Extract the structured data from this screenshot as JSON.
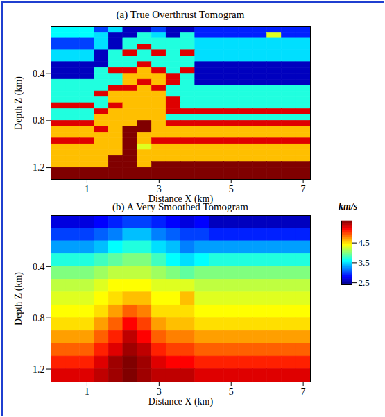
{
  "chart_data": [
    {
      "type": "heatmap",
      "title": "(a) True Overthrust Tomogram",
      "x_label": "Distance X (km)",
      "y_label": "Depth Z (km)",
      "xlim": [
        0,
        7.2
      ],
      "xticks": [
        1,
        3,
        5,
        7
      ],
      "ylim": [
        1.3,
        0
      ],
      "yticks": [
        0.4,
        0.8,
        1.2
      ],
      "color": "jet",
      "colorbar": {
        "label": "km/s",
        "range": [
          2.4,
          5.6
        ],
        "ticks": [
          2.5,
          3.5,
          4.5
        ]
      },
      "x": [
        0.2,
        0.6,
        1.0,
        1.4,
        1.8,
        2.2,
        2.6,
        3.0,
        3.4,
        3.8,
        4.2,
        4.6,
        5.0,
        5.4,
        5.8,
        6.2,
        6.6,
        7.0
      ],
      "y": [
        0.025,
        0.075,
        0.125,
        0.175,
        0.225,
        0.275,
        0.325,
        0.375,
        0.425,
        0.475,
        0.525,
        0.575,
        0.625,
        0.675,
        0.725,
        0.775,
        0.825,
        0.875,
        0.925,
        0.975,
        1.025,
        1.075,
        1.125,
        1.175,
        1.225,
        1.275
      ],
      "values": [
        [
          3.6,
          3.6,
          3.6,
          3.0,
          3.5,
          2.6,
          2.6,
          3.0,
          2.6,
          2.6,
          2.9,
          2.9,
          2.9,
          2.9,
          2.9,
          2.9,
          2.9,
          2.9
        ],
        [
          3.6,
          3.6,
          3.6,
          3.5,
          2.6,
          2.6,
          3.7,
          3.5,
          2.6,
          3.7,
          2.9,
          2.9,
          2.9,
          2.9,
          2.9,
          4.3,
          2.9,
          2.9
        ],
        [
          3.0,
          3.0,
          3.0,
          3.5,
          2.6,
          3.7,
          3.7,
          3.7,
          3.7,
          3.7,
          3.5,
          3.5,
          3.5,
          3.5,
          3.5,
          3.5,
          3.5,
          3.5
        ],
        [
          3.0,
          3.0,
          3.0,
          3.5,
          2.6,
          3.7,
          5.3,
          3.7,
          3.7,
          3.7,
          3.5,
          3.5,
          3.5,
          3.5,
          3.5,
          3.5,
          3.5,
          3.5
        ],
        [
          3.5,
          3.5,
          3.5,
          2.6,
          3.7,
          5.3,
          3.7,
          5.3,
          3.7,
          5.3,
          3.5,
          3.5,
          3.5,
          3.5,
          3.5,
          3.5,
          3.5,
          3.5
        ],
        [
          3.5,
          3.5,
          3.5,
          2.6,
          3.7,
          3.7,
          3.7,
          3.7,
          3.7,
          3.7,
          3.5,
          3.5,
          3.5,
          3.5,
          3.5,
          3.5,
          3.5,
          3.5
        ],
        [
          2.6,
          2.6,
          2.6,
          2.6,
          3.7,
          3.7,
          5.3,
          3.7,
          3.7,
          3.7,
          2.6,
          2.6,
          2.6,
          2.6,
          2.6,
          2.6,
          2.6,
          2.6
        ],
        [
          2.6,
          2.6,
          2.6,
          3.7,
          5.3,
          5.3,
          4.6,
          5.3,
          3.7,
          5.3,
          2.6,
          2.6,
          2.6,
          2.6,
          2.6,
          2.6,
          2.6,
          2.6
        ],
        [
          2.6,
          2.6,
          2.6,
          3.7,
          3.7,
          4.6,
          4.6,
          4.6,
          5.3,
          3.7,
          2.6,
          2.6,
          2.6,
          2.6,
          2.6,
          2.6,
          2.6,
          2.6
        ],
        [
          3.7,
          3.7,
          3.7,
          3.7,
          3.7,
          4.6,
          5.3,
          4.6,
          5.3,
          3.7,
          2.6,
          2.6,
          2.6,
          2.6,
          2.6,
          2.6,
          2.6,
          2.6
        ],
        [
          3.7,
          3.7,
          3.7,
          3.7,
          5.3,
          5.3,
          4.6,
          5.3,
          3.7,
          3.7,
          3.7,
          3.7,
          3.7,
          3.7,
          3.7,
          3.7,
          3.7,
          3.7
        ],
        [
          3.7,
          3.7,
          3.7,
          5.3,
          4.6,
          4.6,
          4.6,
          4.6,
          3.7,
          3.7,
          3.7,
          3.7,
          3.7,
          3.7,
          3.7,
          3.7,
          3.7,
          3.7
        ],
        [
          3.7,
          3.7,
          3.7,
          3.7,
          4.6,
          4.6,
          4.6,
          4.6,
          5.3,
          3.7,
          3.7,
          3.7,
          3.7,
          3.7,
          3.7,
          3.7,
          3.7,
          3.7
        ],
        [
          5.3,
          5.3,
          5.3,
          3.7,
          5.3,
          4.6,
          4.6,
          4.6,
          5.3,
          3.7,
          3.7,
          3.7,
          3.7,
          3.7,
          3.7,
          3.7,
          3.7,
          3.7
        ],
        [
          3.7,
          3.7,
          3.7,
          5.3,
          4.6,
          4.6,
          4.6,
          4.6,
          5.3,
          5.3,
          5.3,
          5.3,
          5.3,
          5.3,
          5.3,
          5.3,
          5.3,
          5.3
        ],
        [
          3.7,
          3.7,
          3.7,
          4.6,
          4.6,
          4.6,
          4.6,
          4.6,
          3.7,
          3.7,
          3.7,
          3.7,
          3.7,
          3.7,
          3.7,
          3.7,
          3.7,
          3.7
        ],
        [
          5.3,
          5.3,
          5.3,
          4.6,
          4.6,
          4.6,
          5.6,
          4.6,
          5.3,
          5.3,
          5.3,
          5.3,
          5.3,
          5.3,
          5.3,
          5.3,
          5.3,
          5.3
        ],
        [
          4.6,
          4.6,
          4.6,
          5.3,
          4.6,
          5.6,
          5.6,
          4.6,
          4.6,
          4.6,
          4.6,
          4.6,
          4.6,
          4.6,
          4.6,
          4.6,
          4.6,
          4.6
        ],
        [
          4.6,
          4.6,
          4.6,
          4.6,
          4.6,
          5.6,
          4.6,
          4.6,
          4.6,
          4.6,
          4.6,
          4.6,
          4.6,
          4.6,
          4.6,
          4.6,
          4.6,
          4.6
        ],
        [
          5.3,
          5.3,
          5.3,
          4.6,
          4.6,
          5.6,
          4.6,
          5.3,
          5.3,
          5.3,
          5.3,
          5.3,
          5.3,
          5.3,
          5.3,
          5.3,
          5.3,
          5.3
        ],
        [
          4.6,
          4.6,
          4.6,
          4.6,
          4.6,
          5.6,
          4.3,
          4.6,
          4.6,
          4.6,
          4.6,
          4.6,
          4.6,
          4.6,
          4.6,
          4.6,
          4.6,
          4.6
        ],
        [
          4.6,
          4.6,
          4.6,
          4.6,
          4.6,
          5.6,
          4.6,
          4.6,
          4.6,
          4.6,
          4.6,
          4.6,
          4.6,
          4.6,
          4.6,
          4.6,
          4.6,
          4.6
        ],
        [
          4.6,
          4.6,
          4.6,
          4.6,
          5.6,
          5.6,
          4.6,
          4.6,
          4.6,
          4.6,
          4.6,
          4.6,
          4.6,
          4.6,
          4.6,
          4.6,
          4.6,
          4.6
        ],
        [
          4.6,
          4.6,
          4.6,
          4.6,
          5.6,
          5.6,
          4.6,
          5.6,
          5.6,
          5.6,
          5.6,
          5.6,
          5.6,
          5.6,
          5.6,
          5.6,
          5.6,
          5.6
        ],
        [
          5.6,
          5.6,
          5.6,
          5.6,
          5.6,
          5.6,
          5.6,
          5.6,
          5.6,
          5.6,
          5.6,
          5.6,
          5.6,
          5.6,
          5.6,
          5.6,
          5.6,
          5.6
        ],
        [
          5.6,
          5.6,
          5.6,
          5.6,
          5.6,
          5.6,
          5.6,
          5.6,
          5.6,
          5.6,
          5.6,
          5.6,
          5.6,
          5.6,
          5.6,
          5.6,
          5.6,
          5.6
        ]
      ]
    },
    {
      "type": "heatmap",
      "title": "(b) A Very Smoothed Tomogram",
      "x_label": "Distance X (km)",
      "y_label": "Depth Z (km)",
      "xlim": [
        0,
        7.2
      ],
      "xticks": [
        1,
        3,
        5,
        7
      ],
      "ylim": [
        1.3,
        0
      ],
      "yticks": [
        0.4,
        0.8,
        1.2
      ],
      "color": "jet",
      "x": [
        0.2,
        0.6,
        1.0,
        1.4,
        1.8,
        2.2,
        2.6,
        3.0,
        3.4,
        3.8,
        4.2,
        4.6,
        5.0,
        5.4,
        5.8,
        6.2,
        6.6,
        7.0
      ],
      "y": [
        0.05,
        0.15,
        0.25,
        0.35,
        0.45,
        0.55,
        0.65,
        0.75,
        0.85,
        0.95,
        1.05,
        1.15,
        1.25
      ],
      "values": [
        [
          2.7,
          2.7,
          2.7,
          2.8,
          2.9,
          3.0,
          3.0,
          2.9,
          2.8,
          2.7,
          2.8,
          2.6,
          2.6,
          2.6,
          2.6,
          2.6,
          2.6,
          2.6
        ],
        [
          3.0,
          3.0,
          3.0,
          3.1,
          3.2,
          3.4,
          3.4,
          3.2,
          3.1,
          3.0,
          3.0,
          2.9,
          2.9,
          2.9,
          2.9,
          2.9,
          2.9,
          2.9
        ],
        [
          3.3,
          3.3,
          3.3,
          3.4,
          3.6,
          3.7,
          3.7,
          3.5,
          3.4,
          3.2,
          3.3,
          3.3,
          3.3,
          3.3,
          3.3,
          3.3,
          3.3,
          3.3
        ],
        [
          3.7,
          3.7,
          3.7,
          3.8,
          3.9,
          4.0,
          4.0,
          3.8,
          3.6,
          3.5,
          3.6,
          3.7,
          3.7,
          3.7,
          3.7,
          3.7,
          3.7,
          3.7
        ],
        [
          4.0,
          4.0,
          4.0,
          4.1,
          4.2,
          4.2,
          4.2,
          4.1,
          4.0,
          3.9,
          4.0,
          4.0,
          4.0,
          4.0,
          4.0,
          4.0,
          4.0,
          4.0
        ],
        [
          4.2,
          4.2,
          4.2,
          4.3,
          4.4,
          4.4,
          4.4,
          4.3,
          4.3,
          4.3,
          4.2,
          4.2,
          4.2,
          4.2,
          4.2,
          4.2,
          4.2,
          4.2
        ],
        [
          4.3,
          4.3,
          4.3,
          4.4,
          4.5,
          4.6,
          4.6,
          4.4,
          4.4,
          4.6,
          4.3,
          4.3,
          4.3,
          4.3,
          4.3,
          4.3,
          4.3,
          4.3
        ],
        [
          4.4,
          4.4,
          4.4,
          4.5,
          4.7,
          4.9,
          4.8,
          4.5,
          4.5,
          4.5,
          4.4,
          4.4,
          4.4,
          4.4,
          4.4,
          4.4,
          4.4,
          4.4
        ],
        [
          4.5,
          4.5,
          4.5,
          4.7,
          4.9,
          5.2,
          5.0,
          4.7,
          4.6,
          4.6,
          4.5,
          4.5,
          4.5,
          4.5,
          4.5,
          4.5,
          4.5,
          4.5
        ],
        [
          4.7,
          4.7,
          4.7,
          4.9,
          5.1,
          5.4,
          5.2,
          4.9,
          4.8,
          4.8,
          4.7,
          4.7,
          4.7,
          4.7,
          4.7,
          4.7,
          4.7,
          4.7
        ],
        [
          4.9,
          4.9,
          4.9,
          5.1,
          5.3,
          5.5,
          5.4,
          5.1,
          5.0,
          5.0,
          4.9,
          4.9,
          4.9,
          4.9,
          4.9,
          4.9,
          4.9,
          4.9
        ],
        [
          5.1,
          5.1,
          5.1,
          5.3,
          5.5,
          5.6,
          5.5,
          5.3,
          5.2,
          5.2,
          5.1,
          5.1,
          5.1,
          5.1,
          5.1,
          5.1,
          5.1,
          5.1
        ],
        [
          5.3,
          5.3,
          5.3,
          5.4,
          5.5,
          5.6,
          5.5,
          5.4,
          5.4,
          5.4,
          5.3,
          5.3,
          5.3,
          5.3,
          5.3,
          5.3,
          5.3,
          5.3
        ]
      ]
    }
  ]
}
